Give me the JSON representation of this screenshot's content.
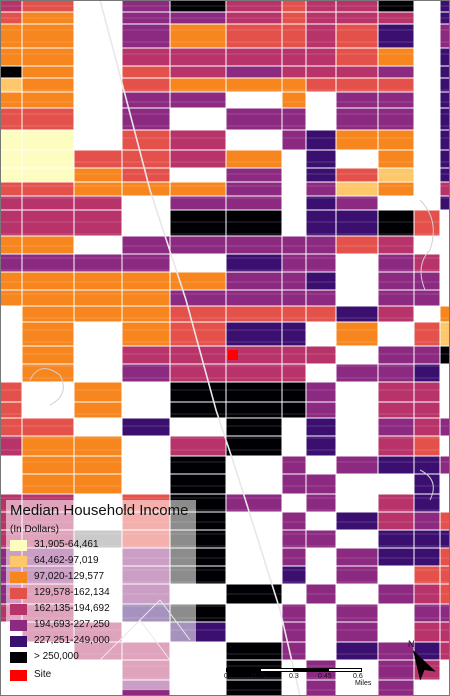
{
  "map": {
    "classes": [
      {
        "label": "31,905-64,461",
        "color": "#fcfdbf"
      },
      {
        "label": "64,462-97,019",
        "color": "#fdc76a"
      },
      {
        "label": "97,020-129,577",
        "color": "#f7861f"
      },
      {
        "label": "129,578-162,134",
        "color": "#e4504a"
      },
      {
        "label": "162,135-194,692",
        "color": "#b8336a"
      },
      {
        "label": "194,693-227,250",
        "color": "#8c2981"
      },
      {
        "label": "227,251-249,000",
        "color": "#3b0f70"
      },
      {
        "label": "> 250,000",
        "color": "#000004"
      }
    ],
    "site": {
      "label": "Site",
      "color": "#ff0000"
    }
  },
  "legend": {
    "title": "Median Household Income",
    "subtitle": "(In Dollars)"
  },
  "scale": {
    "ticks": [
      "0",
      "0.15",
      "0.3",
      "0.45",
      "0.6"
    ],
    "unit": "Miles"
  },
  "north": {
    "label": "N"
  }
}
